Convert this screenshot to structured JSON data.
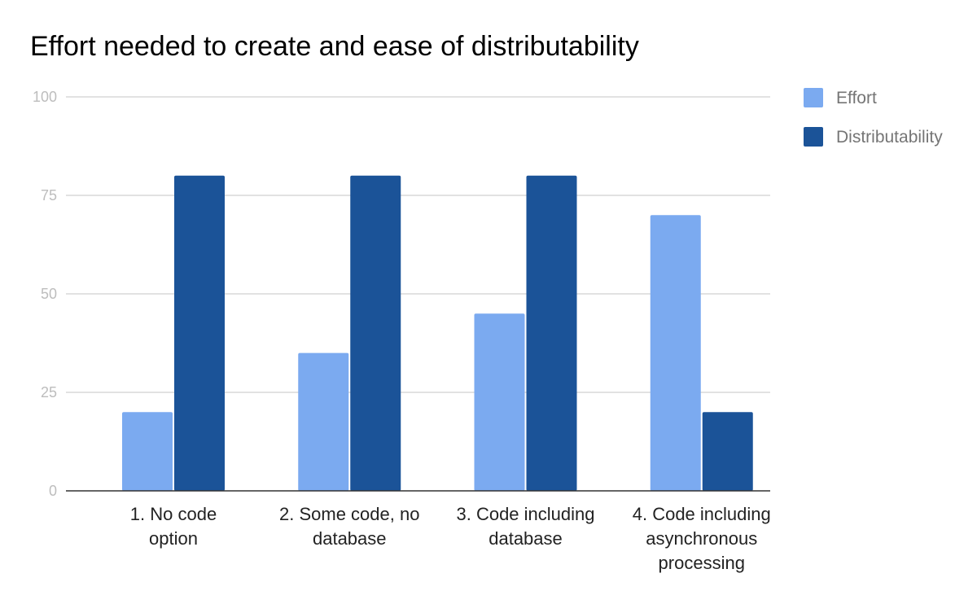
{
  "chart_data": {
    "type": "bar",
    "title": "Effort needed to create and ease of distributability",
    "xlabel": "",
    "ylabel": "",
    "categories": [
      [
        "1. No code",
        "option"
      ],
      [
        "2. Some code, no",
        "database"
      ],
      [
        "3. Code including",
        "database"
      ],
      [
        "4. Code including",
        "asynchronous",
        "processing"
      ]
    ],
    "series": [
      {
        "name": "Effort",
        "color": "#7baaf0",
        "values": [
          20,
          35,
          45,
          70
        ]
      },
      {
        "name": "Distributability",
        "color": "#1b5398",
        "values": [
          80,
          80,
          80,
          20
        ]
      }
    ],
    "ylim": [
      0,
      100
    ],
    "yticks": [
      0,
      25,
      50,
      75,
      100
    ],
    "grid": true,
    "legend": "right"
  }
}
